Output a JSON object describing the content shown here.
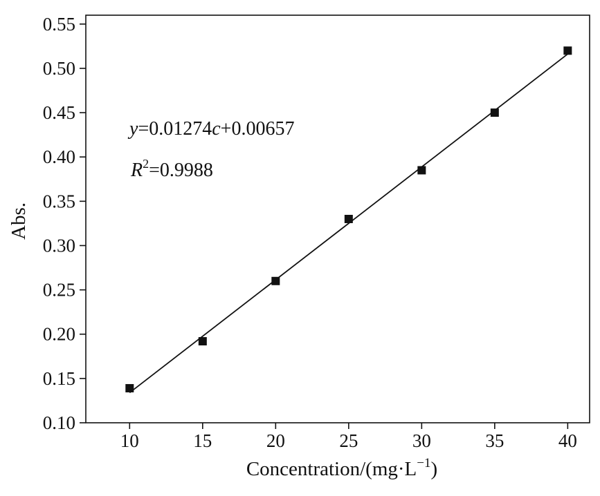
{
  "chart_data": {
    "type": "scatter",
    "title": "",
    "xlabel": "Concentration/(mg·L",
    "xlabel_sup": "−1",
    "xlabel_close": ")",
    "ylabel": "Abs.",
    "xlim": [
      7.0,
      41.5
    ],
    "ylim": [
      0.1,
      0.56
    ],
    "x_ticks": [
      10,
      15,
      20,
      25,
      30,
      35,
      40
    ],
    "x_tick_labels": [
      "10",
      "15",
      "20",
      "25",
      "30",
      "35",
      "40"
    ],
    "y_ticks": [
      0.1,
      0.15,
      0.2,
      0.25,
      0.3,
      0.35,
      0.4,
      0.45,
      0.5,
      0.55
    ],
    "y_tick_labels": [
      "0.10",
      "0.15",
      "0.20",
      "0.25",
      "0.30",
      "0.35",
      "0.40",
      "0.45",
      "0.50",
      "0.55"
    ],
    "series": [
      {
        "marker": "square",
        "color": "#111111",
        "points": [
          {
            "x": 10,
            "y": 0.139
          },
          {
            "x": 15,
            "y": 0.192
          },
          {
            "x": 20,
            "y": 0.26
          },
          {
            "x": 25,
            "y": 0.33
          },
          {
            "x": 30,
            "y": 0.385
          },
          {
            "x": 35,
            "y": 0.45
          },
          {
            "x": 40,
            "y": 0.52
          }
        ]
      }
    ],
    "fit": {
      "slope": 0.01274,
      "intercept": 0.00657,
      "x_range": [
        10,
        40
      ],
      "color": "#111111"
    },
    "annotations": {
      "equation": {
        "y": "y",
        "eq_mid": "=0.01274",
        "c": "c",
        "eq_end": "+0.00657"
      },
      "r2": {
        "r": "R",
        "sup": "2",
        "value": "=0.9988"
      }
    },
    "grid": false,
    "legend": "none"
  }
}
